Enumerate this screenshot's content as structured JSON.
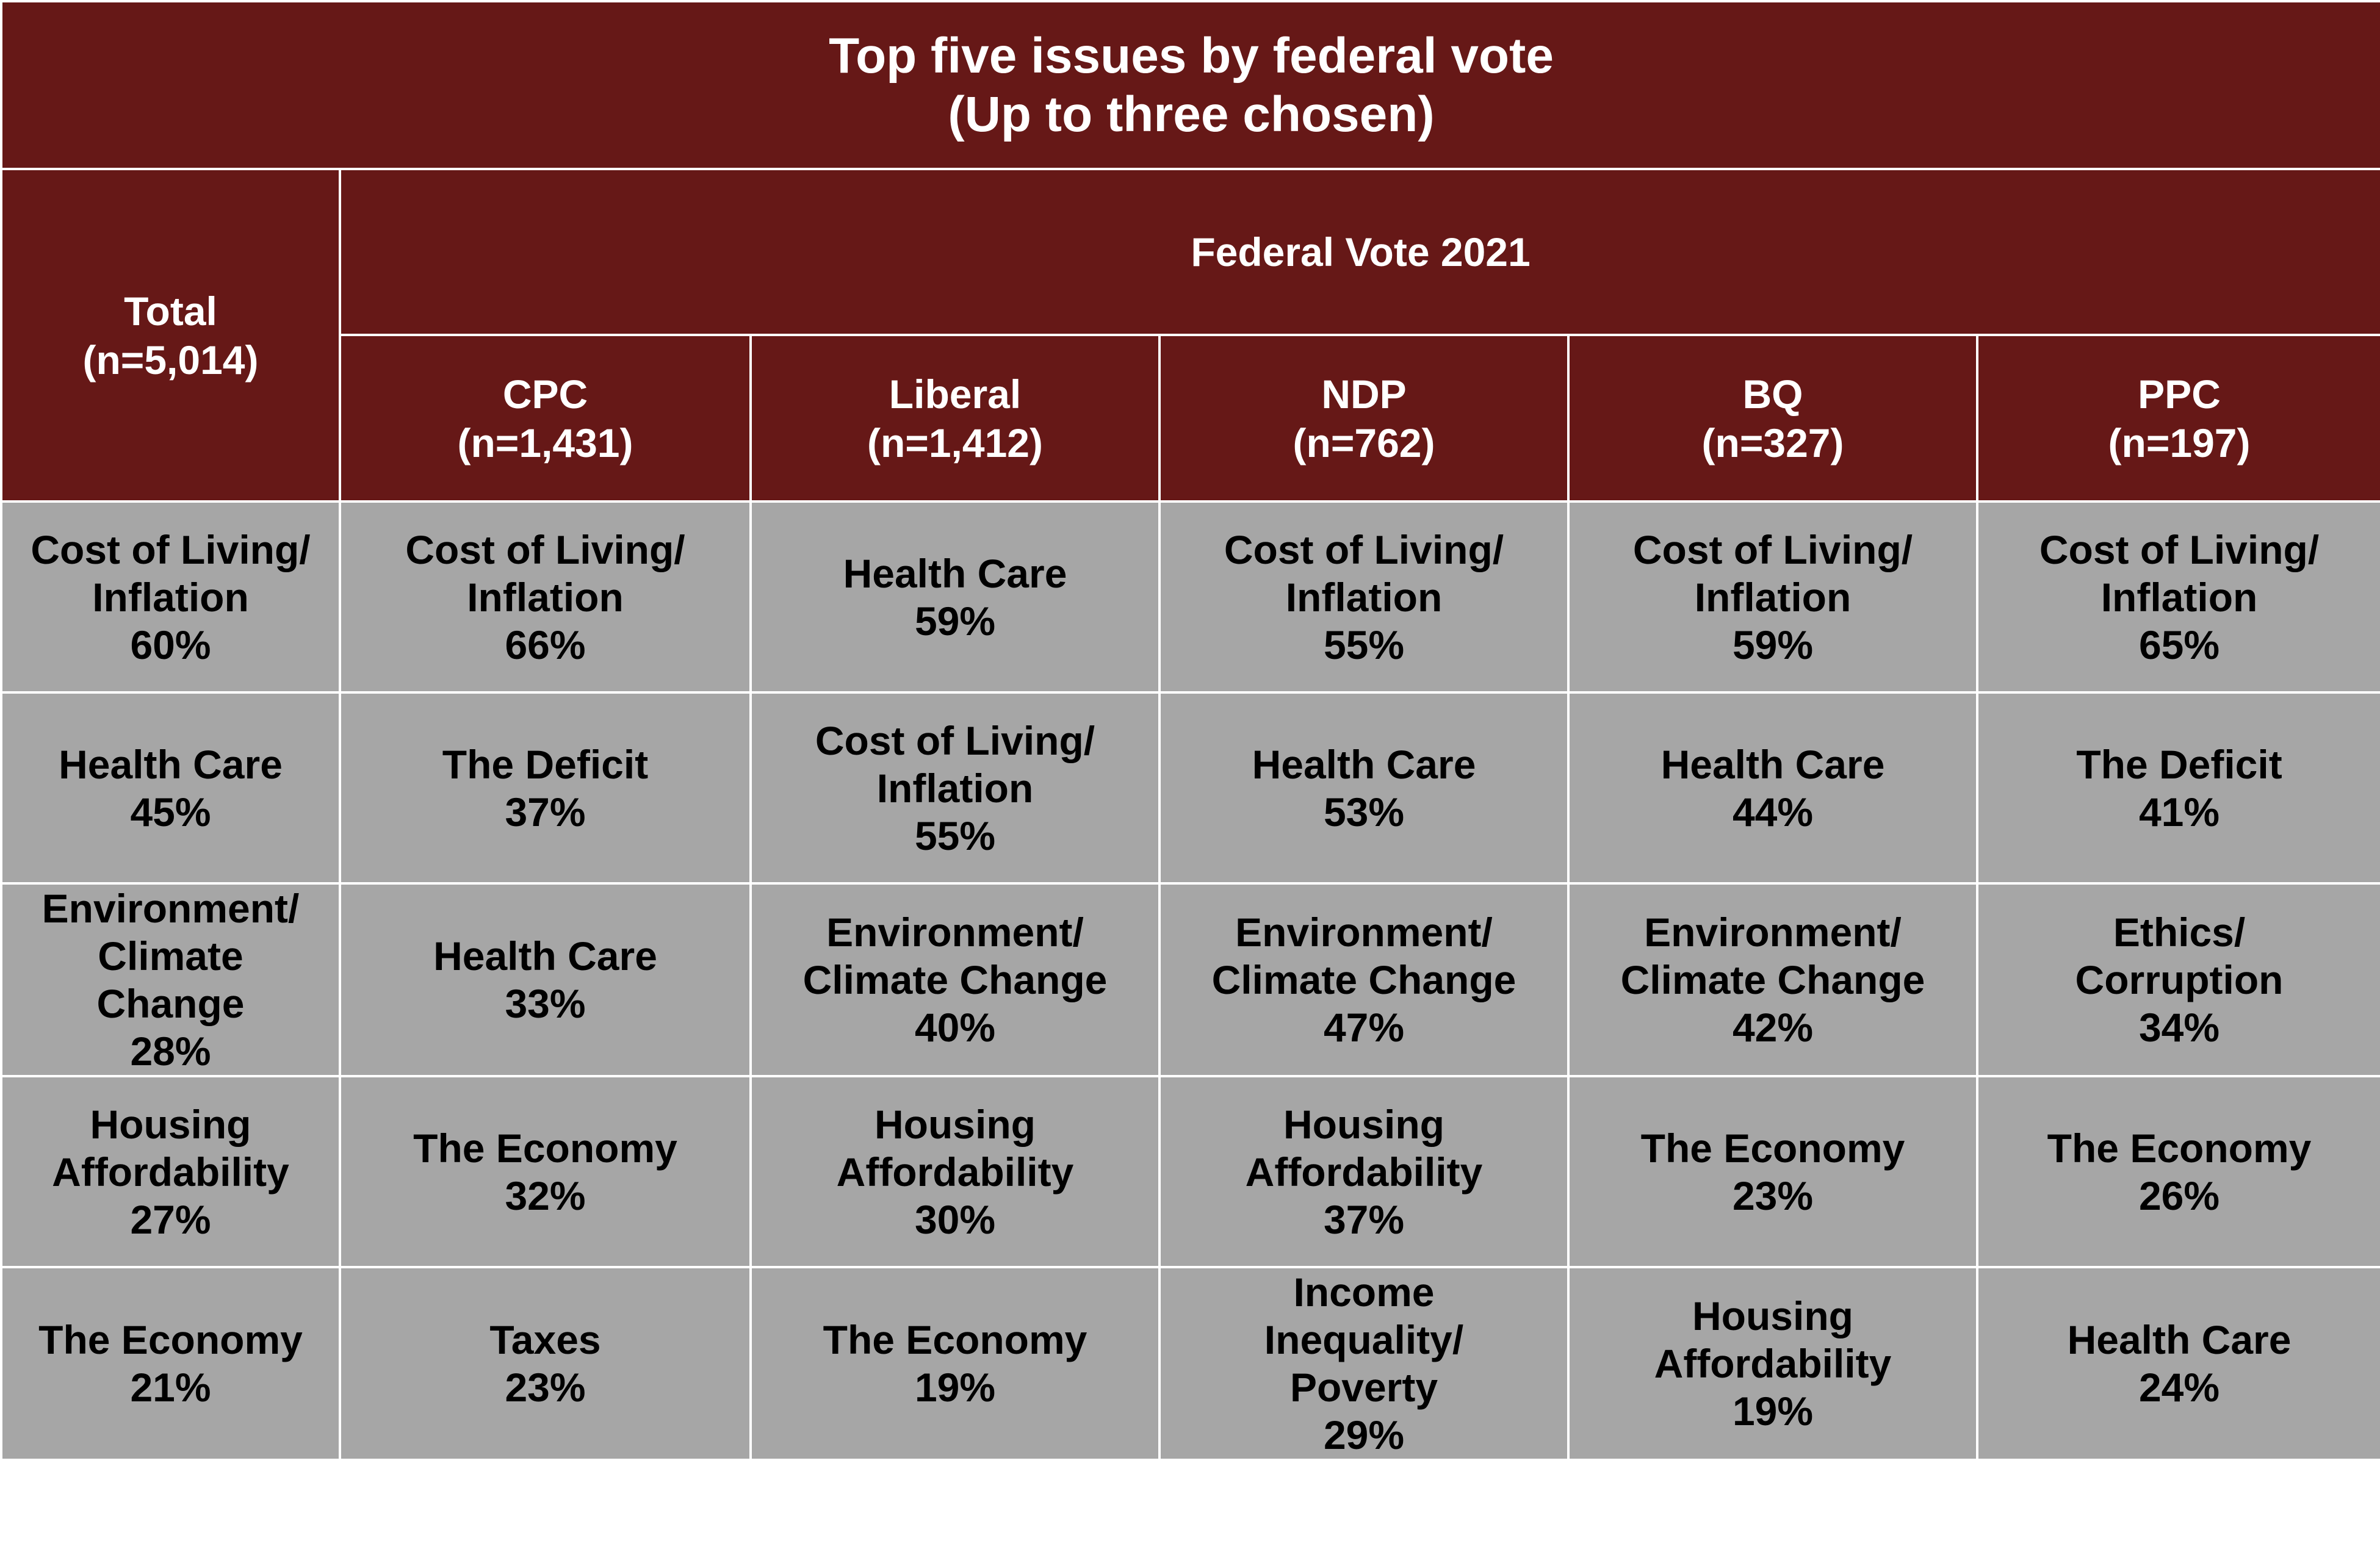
{
  "chart_data": {
    "type": "table",
    "title": "Top five issues by federal vote",
    "subtitle": "(Up to three chosen)",
    "group_header": "Federal Vote 2021",
    "columns": [
      {
        "name": "Total",
        "n": "(n=5,014)"
      },
      {
        "name": "CPC",
        "n": "(n=1,431)"
      },
      {
        "name": "Liberal",
        "n": "(n=1,412)"
      },
      {
        "name": "NDP",
        "n": "(n=762)"
      },
      {
        "name": "BQ",
        "n": "(n=327)"
      },
      {
        "name": "PPC",
        "n": "(n=197)"
      }
    ],
    "rows": [
      [
        {
          "lines": [
            "Cost of Living/",
            "Inflation"
          ],
          "pct": "60%"
        },
        {
          "lines": [
            "Cost of Living/",
            "Inflation"
          ],
          "pct": "66%"
        },
        {
          "lines": [
            "Health Care"
          ],
          "pct": "59%"
        },
        {
          "lines": [
            "Cost of Living/",
            "Inflation"
          ],
          "pct": "55%"
        },
        {
          "lines": [
            "Cost of Living/",
            "Inflation"
          ],
          "pct": "59%"
        },
        {
          "lines": [
            "Cost of Living/",
            "Inflation"
          ],
          "pct": "65%"
        }
      ],
      [
        {
          "lines": [
            "Health Care"
          ],
          "pct": "45%"
        },
        {
          "lines": [
            "The Deficit"
          ],
          "pct": "37%"
        },
        {
          "lines": [
            "Cost of Living/",
            "Inflation"
          ],
          "pct": "55%"
        },
        {
          "lines": [
            "Health Care"
          ],
          "pct": "53%"
        },
        {
          "lines": [
            "Health Care"
          ],
          "pct": "44%"
        },
        {
          "lines": [
            "The Deficit"
          ],
          "pct": "41%"
        }
      ],
      [
        {
          "lines": [
            "Environment/",
            "Climate",
            "Change"
          ],
          "pct": "28%"
        },
        {
          "lines": [
            "Health Care"
          ],
          "pct": "33%"
        },
        {
          "lines": [
            "Environment/",
            "Climate Change"
          ],
          "pct": "40%"
        },
        {
          "lines": [
            "Environment/",
            "Climate Change"
          ],
          "pct": "47%"
        },
        {
          "lines": [
            "Environment/",
            "Climate Change"
          ],
          "pct": "42%"
        },
        {
          "lines": [
            "Ethics/",
            "Corruption"
          ],
          "pct": "34%"
        }
      ],
      [
        {
          "lines": [
            "Housing",
            "Affordability"
          ],
          "pct": "27%"
        },
        {
          "lines": [
            "The Economy"
          ],
          "pct": "32%"
        },
        {
          "lines": [
            "Housing",
            "Affordability"
          ],
          "pct": "30%"
        },
        {
          "lines": [
            "Housing",
            "Affordability"
          ],
          "pct": "37%"
        },
        {
          "lines": [
            "The Economy"
          ],
          "pct": "23%"
        },
        {
          "lines": [
            "The Economy"
          ],
          "pct": "26%"
        }
      ],
      [
        {
          "lines": [
            "The Economy"
          ],
          "pct": "21%"
        },
        {
          "lines": [
            "Taxes"
          ],
          "pct": "23%"
        },
        {
          "lines": [
            "The Economy"
          ],
          "pct": "19%"
        },
        {
          "lines": [
            "Income",
            "Inequality/",
            "Poverty"
          ],
          "pct": "29%"
        },
        {
          "lines": [
            "Housing",
            "Affordability"
          ],
          "pct": "19%"
        },
        {
          "lines": [
            "Health Care"
          ],
          "pct": "24%"
        }
      ]
    ],
    "colors": {
      "header_bg": "#661817",
      "header_text": "#ffffff",
      "cell_bg": "#a6a6a6",
      "cell_text": "#000000",
      "border": "#ffffff"
    }
  }
}
